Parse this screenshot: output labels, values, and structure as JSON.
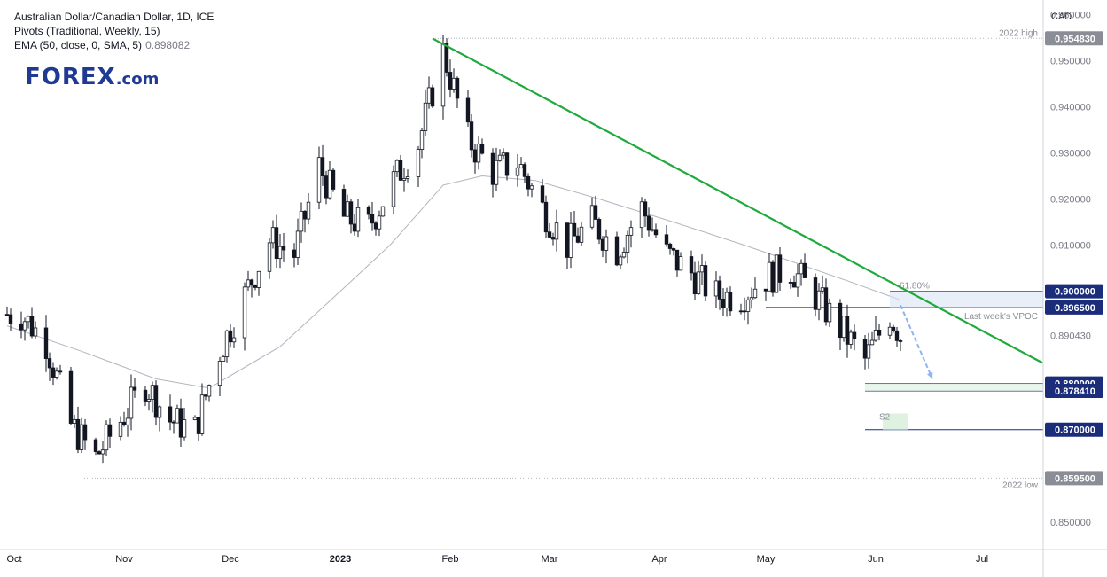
{
  "legend": {
    "line1": "Australian Dollar/Canadian Dollar, 1D, ICE",
    "line2": "Pivots (Traditional, Weekly, 15)",
    "line3_label": "EMA (50, close, 0, SMA, 5)",
    "line3_value": "0.898082"
  },
  "logo": {
    "main": "FOREX",
    "suffix": ".com"
  },
  "axis": {
    "currency": "CAD"
  },
  "colors": {
    "up": "#ffffff",
    "down": "#131722",
    "trendline": "#1faa3c",
    "ema": "#b2b5be",
    "navy": "#1b2d7a",
    "gray_badge": "#8a8d96",
    "arrow": "#8fb4f0",
    "vpoc": "#3f3f9a"
  },
  "chart_data": {
    "type": "candlestick",
    "symbol": "AUDCAD",
    "timeframe": "1D",
    "ylim": [
      0.844,
      0.962
    ],
    "y_ticks": [
      "0.960000",
      "0.950000",
      "0.940000",
      "0.930000",
      "0.920000",
      "0.910000",
      "0.890430",
      "0.850000"
    ],
    "x_ticks": [
      {
        "label": "Oct",
        "date": "2022-10-01"
      },
      {
        "label": "Nov",
        "date": "2022-11-01"
      },
      {
        "label": "Dec",
        "date": "2022-12-01"
      },
      {
        "label": "2023",
        "date": "2023-01-01"
      },
      {
        "label": "Feb",
        "date": "2023-02-01"
      },
      {
        "label": "Mar",
        "date": "2023-03-01"
      },
      {
        "label": "Apr",
        "date": "2023-04-01"
      },
      {
        "label": "May",
        "date": "2023-05-01"
      },
      {
        "label": "Jun",
        "date": "2023-06-01"
      },
      {
        "label": "Jul",
        "date": "2023-07-01"
      }
    ],
    "x_range": [
      "2022-09-29",
      "2023-07-18"
    ],
    "close_path": [
      [
        "2022-10-03",
        0.895
      ],
      [
        "2022-10-10",
        0.889
      ],
      [
        "2022-10-17",
        0.871
      ],
      [
        "2022-10-24",
        0.864
      ],
      [
        "2022-10-31",
        0.872
      ],
      [
        "2022-11-07",
        0.88
      ],
      [
        "2022-11-14",
        0.872
      ],
      [
        "2022-11-21",
        0.87
      ],
      [
        "2022-11-28",
        0.887
      ],
      [
        "2022-12-05",
        0.899
      ],
      [
        "2022-12-12",
        0.911
      ],
      [
        "2022-12-19",
        0.908
      ],
      [
        "2022-12-26",
        0.927
      ],
      [
        "2023-01-02",
        0.916
      ],
      [
        "2023-01-09",
        0.914
      ],
      [
        "2023-01-16",
        0.924
      ],
      [
        "2023-01-23",
        0.932
      ],
      [
        "2023-01-30",
        0.952
      ],
      [
        "2023-02-06",
        0.933
      ],
      [
        "2023-02-13",
        0.926
      ],
      [
        "2023-02-20",
        0.928
      ],
      [
        "2023-02-27",
        0.918
      ],
      [
        "2023-03-06",
        0.91
      ],
      [
        "2023-03-13",
        0.915
      ],
      [
        "2023-03-20",
        0.909
      ],
      [
        "2023-03-27",
        0.918
      ],
      [
        "2023-04-03",
        0.908
      ],
      [
        "2023-04-10",
        0.904
      ],
      [
        "2023-04-17",
        0.899
      ],
      [
        "2023-04-24",
        0.899
      ],
      [
        "2023-05-01",
        0.903
      ],
      [
        "2023-05-08",
        0.905
      ],
      [
        "2023-05-15",
        0.899
      ],
      [
        "2023-05-22",
        0.892
      ],
      [
        "2023-05-29",
        0.885
      ],
      [
        "2023-06-05",
        0.895
      ],
      [
        "2023-06-08",
        0.8904
      ]
    ],
    "ema_path": [
      [
        "2022-09-29",
        0.8925
      ],
      [
        "2022-10-20",
        0.887
      ],
      [
        "2022-11-10",
        0.881
      ],
      [
        "2022-11-25",
        0.879
      ],
      [
        "2022-12-15",
        0.888
      ],
      [
        "2023-01-01",
        0.9
      ],
      [
        "2023-01-15",
        0.91
      ],
      [
        "2023-01-30",
        0.923
      ],
      [
        "2023-02-10",
        0.925
      ],
      [
        "2023-02-25",
        0.924
      ],
      [
        "2023-03-15",
        0.92
      ],
      [
        "2023-04-05",
        0.915
      ],
      [
        "2023-04-25",
        0.91
      ],
      [
        "2023-05-10",
        0.906
      ],
      [
        "2023-05-25",
        0.902
      ],
      [
        "2023-06-08",
        0.8981
      ]
    ],
    "trendline": {
      "from": [
        "2023-01-27",
        0.9548
      ],
      "to": [
        "2023-07-18",
        0.8845
      ]
    },
    "levels": [
      {
        "label": "0.954830",
        "value": 0.95483,
        "note": "2022 high",
        "style": "gray"
      },
      {
        "label": "0.900000",
        "value": 0.9,
        "note": "61.80%",
        "style": "navy"
      },
      {
        "label": "0.896500",
        "value": 0.8965,
        "note": "Last week's VPOC",
        "style": "navy"
      },
      {
        "label": "0.880000",
        "value": 0.88,
        "note": "",
        "style": "navy"
      },
      {
        "label": "0.878410",
        "value": 0.87841,
        "note": "",
        "style": "navy"
      },
      {
        "label": "0.870000",
        "value": 0.87,
        "note": "S2",
        "style": "navy"
      },
      {
        "label": "0.859500",
        "value": 0.8595,
        "note": "2022 low",
        "style": "gray"
      }
    ],
    "last_price": "0.890430",
    "projection": {
      "from": [
        "2023-06-08",
        0.897
      ],
      "to": [
        "2023-06-17",
        0.881
      ]
    }
  }
}
